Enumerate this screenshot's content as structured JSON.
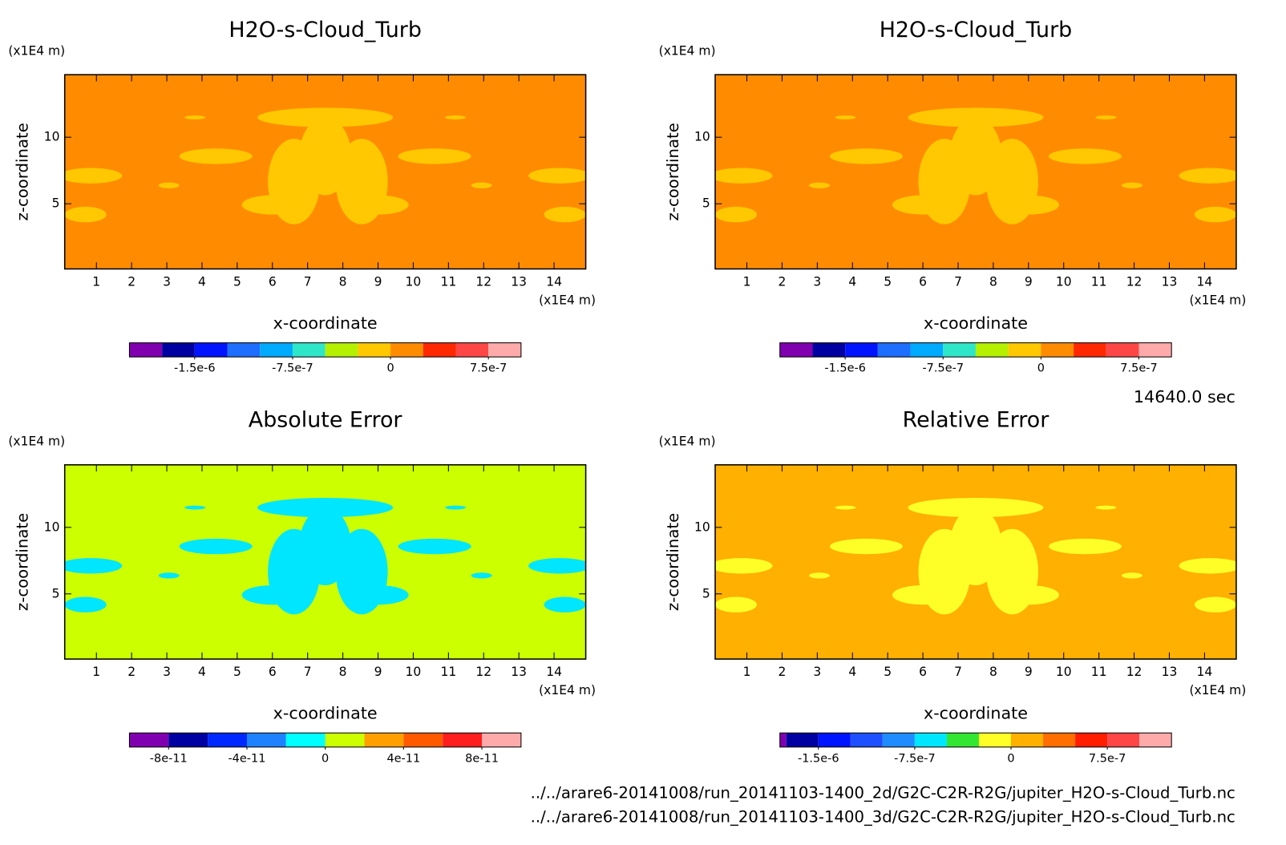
{
  "chart_data": [
    {
      "type": "contour",
      "title": "H2O-s-Cloud_Turb",
      "xlabel": "x-coordinate",
      "ylabel": "z-coordinate",
      "xunit": "(x1E4 m)",
      "yunit": "(x1E4 m)",
      "xlim": [
        0.1,
        14.9
      ],
      "ylim": [
        0.1,
        14.7
      ],
      "xticks": [
        1,
        2,
        3,
        4,
        5,
        6,
        7,
        8,
        9,
        10,
        11,
        12,
        13,
        14
      ],
      "yticks": [
        5,
        10
      ],
      "background": "#ff8c00",
      "feature_color": "#ffc800",
      "colorbar": {
        "bins": [
          -2e-06,
          -1.75e-06,
          -1.5e-06,
          -1.25e-06,
          -1e-06,
          -7.5e-07,
          -5e-07,
          -2.5e-07,
          0,
          2.5e-07,
          5e-07,
          7.5e-07,
          1e-06
        ],
        "colors": [
          "#8000b0",
          "#0000a0",
          "#0014ff",
          "#1e6eff",
          "#00aaff",
          "#30e6c8",
          "#b4f000",
          "#ffc800",
          "#ff8c00",
          "#ff2800",
          "#ff4646",
          "#ffaaaa"
        ],
        "ticks": [
          {
            "value": -1.5e-06,
            "label": "-1.5e-6"
          },
          -7.5e-07,
          0,
          7.5e-07
        ]
      }
    },
    {
      "type": "contour",
      "title": "H2O-s-Cloud_Turb",
      "xlabel": "x-coordinate",
      "ylabel": "z-coordinate",
      "xunit": "(x1E4 m)",
      "yunit": "(x1E4 m)",
      "xlim": [
        0.1,
        14.9
      ],
      "ylim": [
        0.1,
        14.7
      ],
      "xticks": [
        1,
        2,
        3,
        4,
        5,
        6,
        7,
        8,
        9,
        10,
        11,
        12,
        13,
        14
      ],
      "yticks": [
        5,
        10
      ],
      "background": "#ff8c00",
      "feature_color": "#ffc800",
      "colorbar": {
        "bins": [
          -2e-06,
          -1.75e-06,
          -1.5e-06,
          -1.25e-06,
          -1e-06,
          -7.5e-07,
          -5e-07,
          -2.5e-07,
          0,
          2.5e-07,
          5e-07,
          7.5e-07,
          1e-06
        ],
        "colors": [
          "#8000b0",
          "#0000a0",
          "#0014ff",
          "#1e6eff",
          "#00aaff",
          "#30e6c8",
          "#b4f000",
          "#ffc800",
          "#ff8c00",
          "#ff2800",
          "#ff4646",
          "#ffaaaa"
        ],
        "ticks": [
          {
            "value": -1.5e-06,
            "label": "-1.5e-6"
          },
          -7.5e-07,
          0,
          7.5e-07
        ]
      }
    },
    {
      "type": "contour",
      "title": "Absolute Error",
      "xlabel": "x-coordinate",
      "ylabel": "z-coordinate",
      "xunit": "(x1E4 m)",
      "yunit": "(x1E4 m)",
      "xlim": [
        0.1,
        14.9
      ],
      "ylim": [
        0.1,
        14.7
      ],
      "xticks": [
        1,
        2,
        3,
        4,
        5,
        6,
        7,
        8,
        9,
        10,
        11,
        12,
        13,
        14
      ],
      "yticks": [
        5,
        10
      ],
      "background": "#ccff00",
      "feature_color": "#00e6ff",
      "colorbar": {
        "bins": [
          -1e-10,
          -8e-11,
          -6e-11,
          -4e-11,
          -2e-11,
          0,
          2e-11,
          4e-11,
          6e-11,
          8e-11,
          1e-10
        ],
        "colors": [
          "#8000b0",
          "#0000a0",
          "#0028ff",
          "#1e82ff",
          "#00ffff",
          "#ccff00",
          "#ffa000",
          "#ff5a00",
          "#ff1e1e",
          "#ffaaaa"
        ],
        "ticks": [
          -8e-11,
          -4e-11,
          0,
          4e-11,
          8e-11
        ]
      }
    },
    {
      "type": "contour",
      "title": "Relative Error",
      "xlabel": "x-coordinate",
      "ylabel": "z-coordinate",
      "xunit": "(x1E4 m)",
      "yunit": "(x1E4 m)",
      "xlim": [
        0.1,
        14.9
      ],
      "ylim": [
        0.1,
        14.7
      ],
      "xticks": [
        1,
        2,
        3,
        4,
        5,
        6,
        7,
        8,
        9,
        10,
        11,
        12,
        13,
        14
      ],
      "yticks": [
        5,
        10
      ],
      "background": "#ffb000",
      "feature_color": "#ffff28",
      "colorbar": {
        "bins": [
          -1.8e-06,
          -1.75e-06,
          -1.5e-06,
          -1.25e-06,
          -1e-06,
          -7.5e-07,
          -5e-07,
          -2.5e-07,
          0,
          2.5e-07,
          5e-07,
          7.5e-07,
          1e-06,
          1.25e-06
        ],
        "colors": [
          "#8000b0",
          "#0000a0",
          "#0014ff",
          "#1e50ff",
          "#1e8cff",
          "#00e6ff",
          "#32e632",
          "#ffff28",
          "#ffb000",
          "#ff6e00",
          "#ff1e00",
          "#ff4646",
          "#ffaaaa"
        ],
        "ticks": [
          {
            "value": -1.5e-06,
            "label": "-1.5e-6"
          },
          -7.5e-07,
          0,
          7.5e-07
        ]
      }
    }
  ],
  "time": "14640.0 sec",
  "files": [
    "../../arare6-20141008/run_20141103-1400_2d/G2C-C2R-R2G/jupiter_H2O-s-Cloud_Turb.nc",
    "../../arare6-20141008/run_20141103-1400_3d/G2C-C2R-R2G/jupiter_H2O-s-Cloud_Turb.nc"
  ]
}
